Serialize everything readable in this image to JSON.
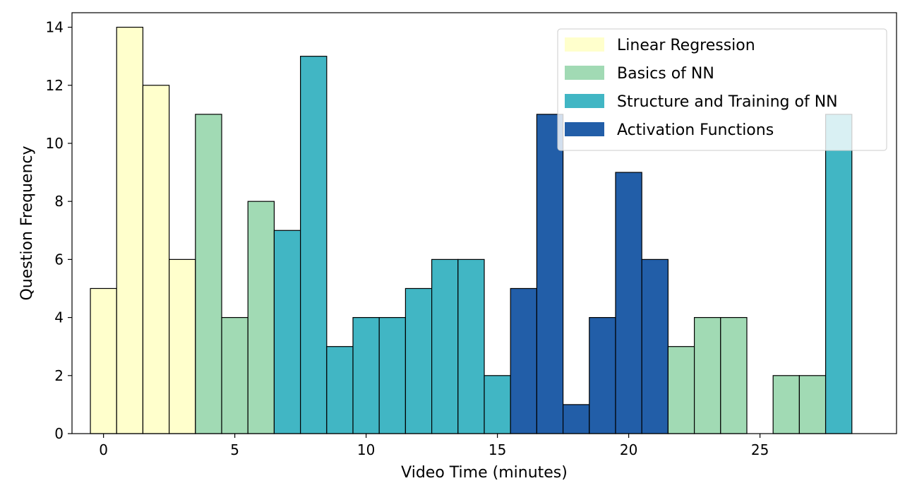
{
  "chart_data": {
    "type": "bar",
    "title": "",
    "xlabel": "Video Time (minutes)",
    "ylabel": "Question Frequency",
    "xlim": [
      -1.2,
      30.2
    ],
    "ylim": [
      0,
      14.5
    ],
    "xticks": [
      0,
      5,
      10,
      15,
      20,
      25
    ],
    "yticks": [
      0,
      2,
      4,
      6,
      8,
      10,
      12,
      14
    ],
    "bin_width": 1,
    "legend_position": "top-right",
    "categories": [
      "Linear Regression",
      "Basics of NN",
      "Structure and Training of NN",
      "Activation Functions"
    ],
    "colors": {
      "Linear Regression": "#ffffcc",
      "Basics of NN": "#a1dab4",
      "Structure and Training of NN": "#41b6c4",
      "Activation Functions": "#225ea8"
    },
    "bars": [
      {
        "x": 0,
        "value": 5,
        "category": "Linear Regression"
      },
      {
        "x": 1,
        "value": 14,
        "category": "Linear Regression"
      },
      {
        "x": 2,
        "value": 12,
        "category": "Linear Regression"
      },
      {
        "x": 3,
        "value": 6,
        "category": "Linear Regression"
      },
      {
        "x": 4,
        "value": 11,
        "category": "Basics of NN"
      },
      {
        "x": 5,
        "value": 4,
        "category": "Basics of NN"
      },
      {
        "x": 6,
        "value": 8,
        "category": "Basics of NN"
      },
      {
        "x": 7,
        "value": 7,
        "category": "Structure and Training of NN"
      },
      {
        "x": 8,
        "value": 13,
        "category": "Structure and Training of NN"
      },
      {
        "x": 9,
        "value": 3,
        "category": "Structure and Training of NN"
      },
      {
        "x": 10,
        "value": 4,
        "category": "Structure and Training of NN"
      },
      {
        "x": 11,
        "value": 4,
        "category": "Structure and Training of NN"
      },
      {
        "x": 12,
        "value": 5,
        "category": "Structure and Training of NN"
      },
      {
        "x": 13,
        "value": 6,
        "category": "Structure and Training of NN"
      },
      {
        "x": 14,
        "value": 6,
        "category": "Structure and Training of NN"
      },
      {
        "x": 15,
        "value": 2,
        "category": "Structure and Training of NN"
      },
      {
        "x": 16,
        "value": 5,
        "category": "Activation Functions"
      },
      {
        "x": 17,
        "value": 11,
        "category": "Activation Functions"
      },
      {
        "x": 18,
        "value": 1,
        "category": "Activation Functions"
      },
      {
        "x": 19,
        "value": 4,
        "category": "Activation Functions"
      },
      {
        "x": 20,
        "value": 9,
        "category": "Activation Functions"
      },
      {
        "x": 21,
        "value": 6,
        "category": "Activation Functions"
      },
      {
        "x": 22,
        "value": 3,
        "category": "Basics of NN"
      },
      {
        "x": 23,
        "value": 4,
        "category": "Basics of NN"
      },
      {
        "x": 24,
        "value": 4,
        "category": "Basics of NN"
      },
      {
        "x": 26,
        "value": 2,
        "category": "Basics of NN"
      },
      {
        "x": 27,
        "value": 2,
        "category": "Basics of NN"
      },
      {
        "x": 28,
        "value": 11,
        "category": "Structure and Training of NN"
      }
    ]
  }
}
